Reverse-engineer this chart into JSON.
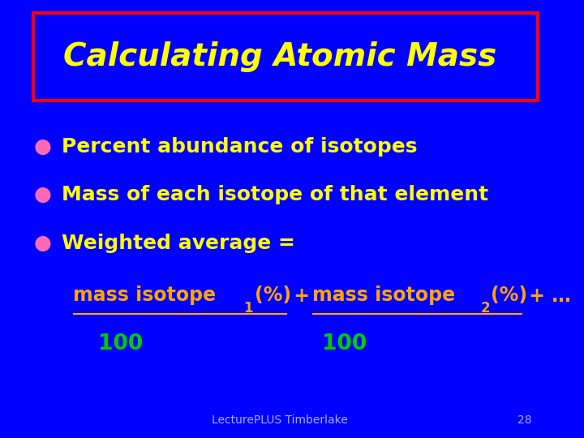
{
  "background_color": "#0000FF",
  "title": "Calculating Atomic Mass",
  "title_color": "#FFFF00",
  "title_box_edge_color": "#FF0000",
  "bullet_color": "#FF69B4",
  "bullet_text_color": "#FFFF00",
  "bullet1": "Percent abundance of isotopes",
  "bullet2": "Mass of each isotope of that element",
  "bullet3": "Weighted average = ",
  "formula_color": "#FFA500",
  "divisor_color": "#00CC00",
  "divisor1": "100",
  "divisor2": "100",
  "footer_text": "LecturePLUS Timberlake",
  "footer_page": "28",
  "footer_color": "#AAAAFF"
}
